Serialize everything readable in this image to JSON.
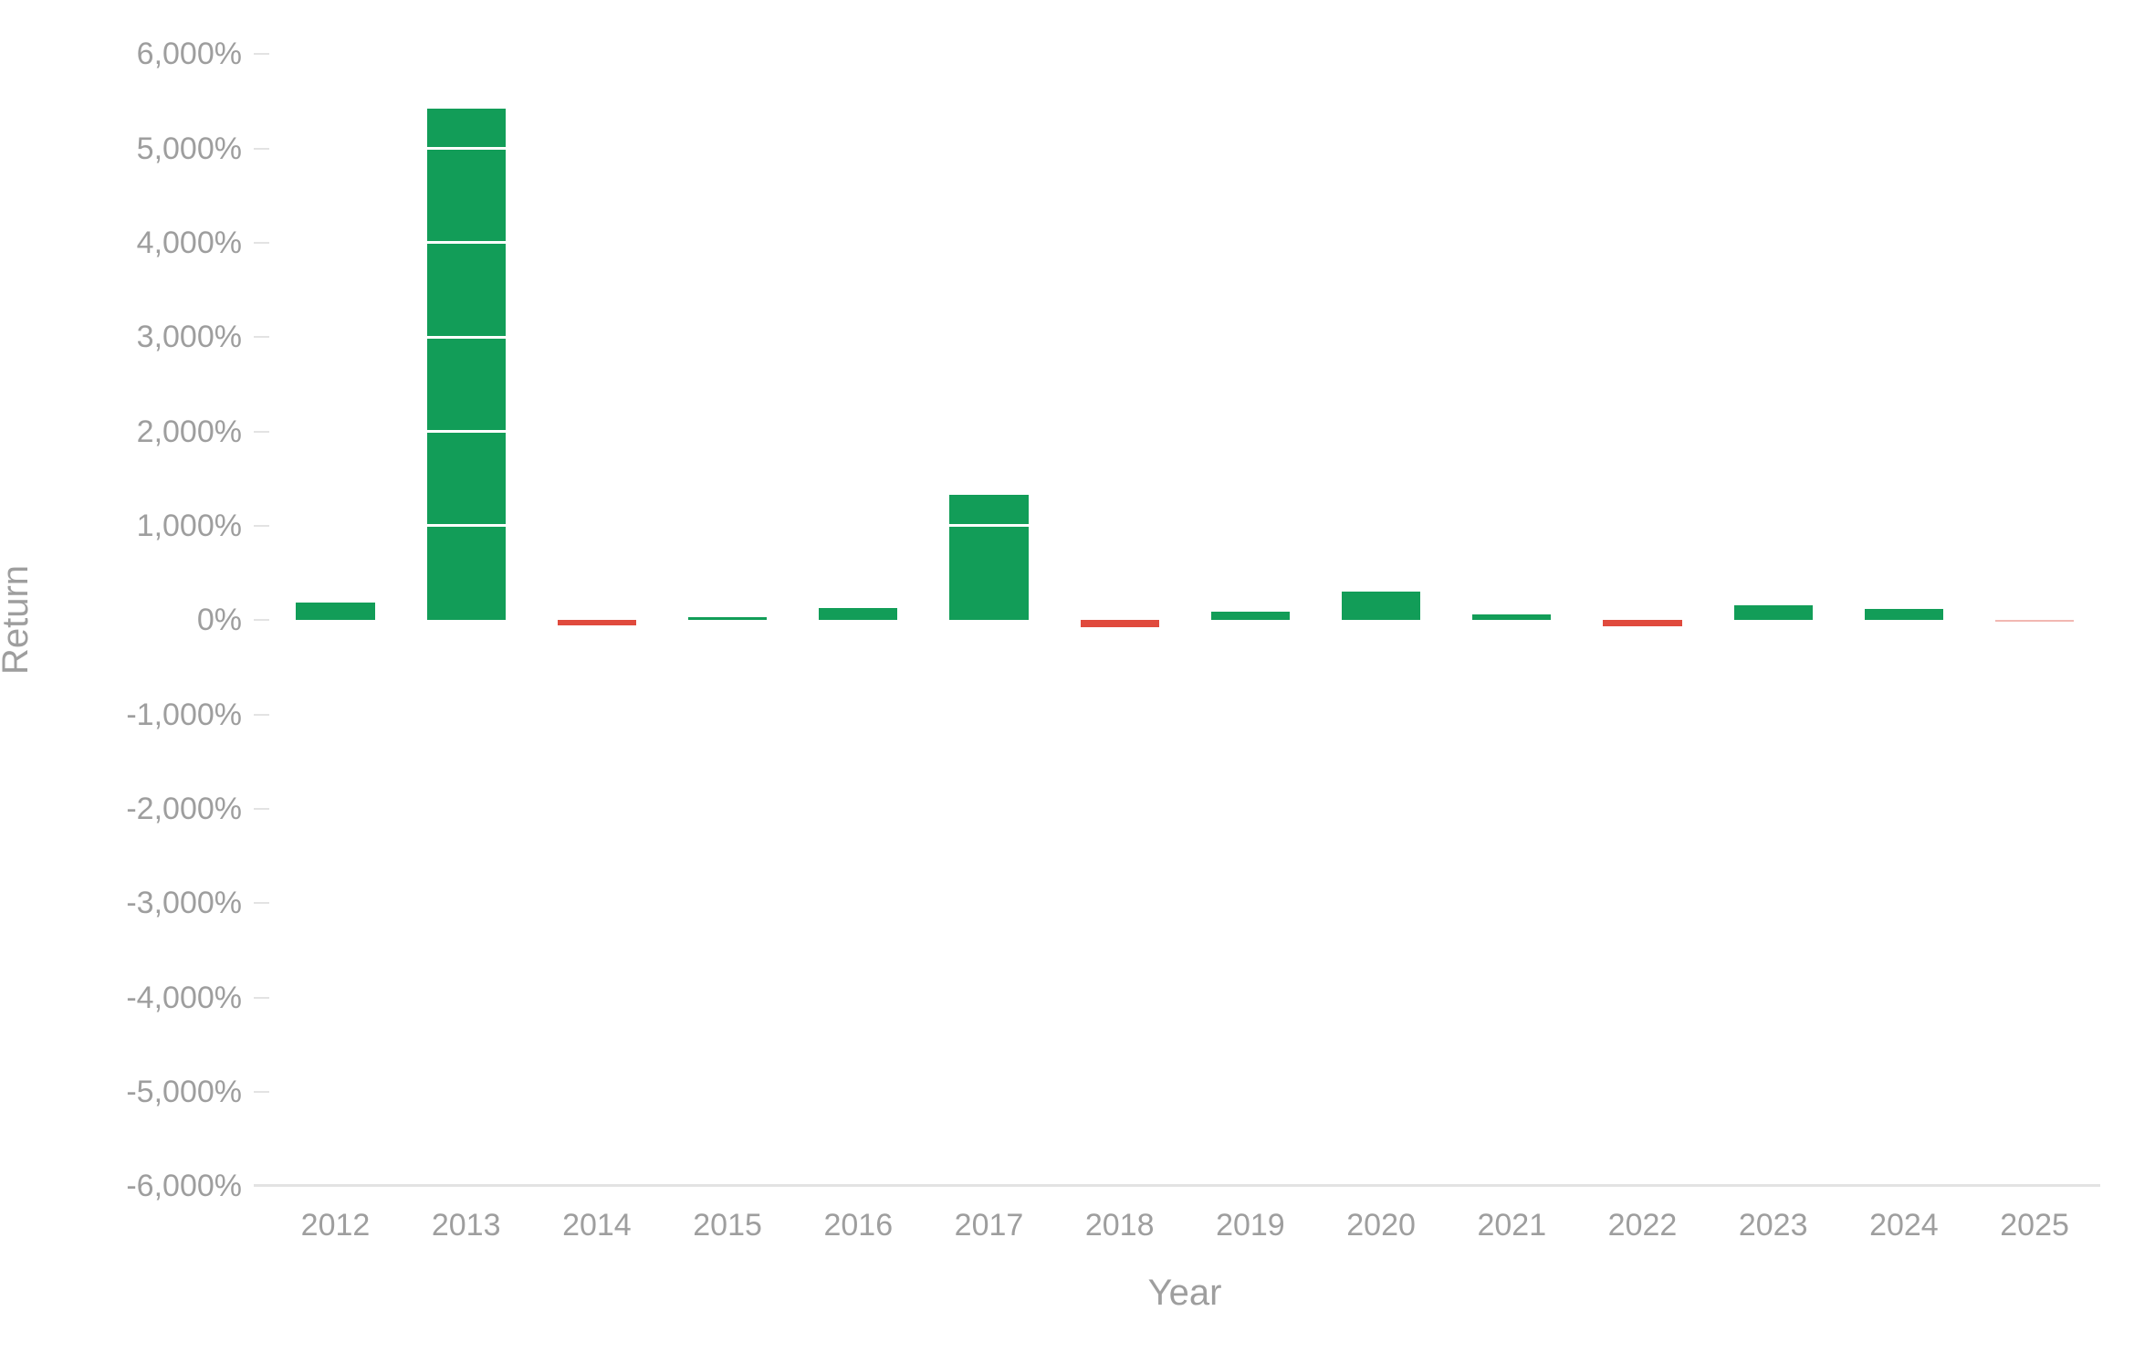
{
  "chart_data": {
    "type": "bar",
    "title": "",
    "xlabel": "Year",
    "ylabel": "Return",
    "ylim": [
      -6000,
      6000
    ],
    "y_ticks": [
      6000,
      5000,
      4000,
      3000,
      2000,
      1000,
      0,
      -1000,
      -2000,
      -3000,
      -4000,
      -5000,
      -6000
    ],
    "y_tick_labels": [
      "6,000%",
      "5,000%",
      "4,000%",
      "3,000%",
      "2,000%",
      "1,000%",
      "0%",
      "-1,000%",
      "-2,000%",
      "-3,000%",
      "-4,000%",
      "-5,000%",
      "-6,000%"
    ],
    "categories": [
      "2012",
      "2013",
      "2014",
      "2015",
      "2016",
      "2017",
      "2018",
      "2019",
      "2020",
      "2021",
      "2022",
      "2023",
      "2024",
      "2025"
    ],
    "values": [
      184,
      5426,
      -55,
      35,
      129,
      1330,
      -74,
      90,
      303,
      58,
      -65,
      155,
      119,
      -5
    ],
    "value_unit": "%",
    "legend": null,
    "grid": false,
    "colors": {
      "positive": "#129d58",
      "negative": "#e04a3d",
      "latest_negative": "#f2b8b2"
    }
  },
  "axis": {
    "x_title": "Year",
    "y_title": "Return"
  }
}
